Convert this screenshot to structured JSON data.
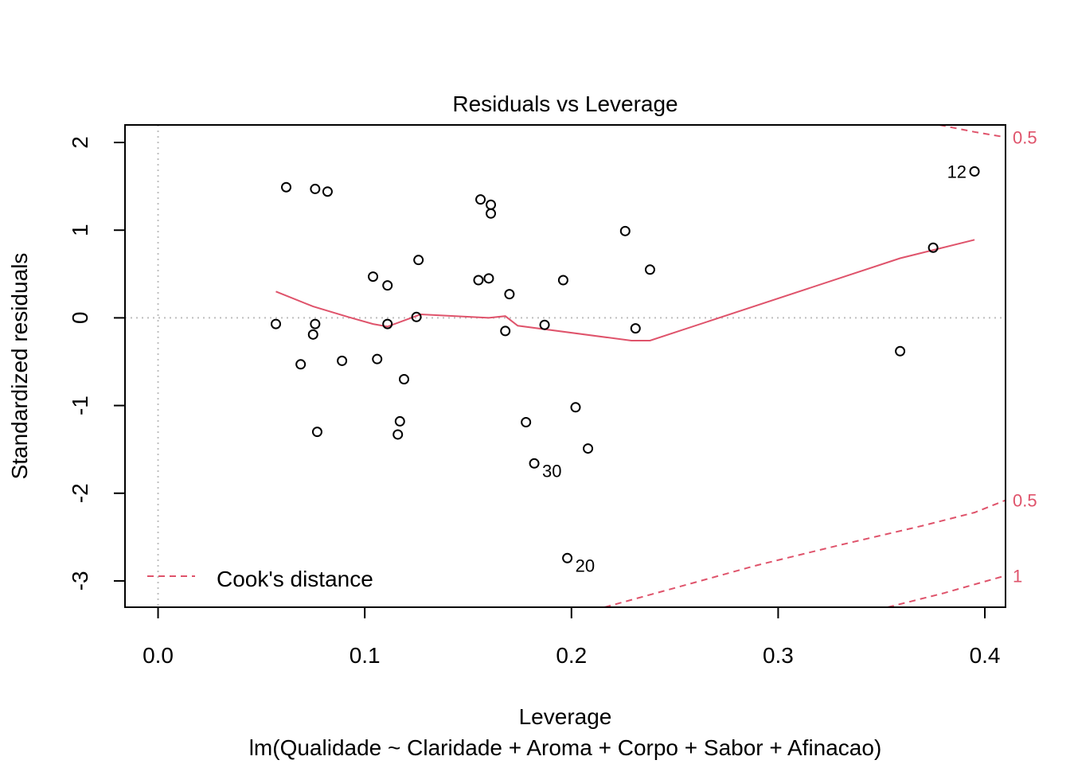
{
  "chart_data": {
    "type": "scatter",
    "title": "Residuals vs Leverage",
    "xlabel": "Leverage",
    "subtitle": "lm(Qualidade ~ Claridade + Aroma + Corpo + Sabor + Afinacao)",
    "ylabel": "Standardized residuals",
    "xlim": [
      -0.016,
      0.41
    ],
    "ylim": [
      -3.3,
      2.2
    ],
    "x_ticks": [
      0.0,
      0.1,
      0.2,
      0.3,
      0.4
    ],
    "x_tick_labels": [
      "0.0",
      "0.1",
      "0.2",
      "0.3",
      "0.4"
    ],
    "y_ticks": [
      2,
      1,
      0,
      -1,
      -2,
      -3
    ],
    "y_tick_labels": [
      "2",
      "1",
      "0",
      "-1",
      "-2",
      "-3"
    ],
    "points": [
      {
        "x": 0.062,
        "y": 1.49
      },
      {
        "x": 0.076,
        "y": 1.47
      },
      {
        "x": 0.082,
        "y": 1.44
      },
      {
        "x": 0.156,
        "y": 1.35
      },
      {
        "x": 0.161,
        "y": 1.29
      },
      {
        "x": 0.161,
        "y": 1.19
      },
      {
        "x": 0.395,
        "y": 1.67,
        "label": "12"
      },
      {
        "x": 0.226,
        "y": 0.99
      },
      {
        "x": 0.375,
        "y": 0.8
      },
      {
        "x": 0.126,
        "y": 0.66
      },
      {
        "x": 0.238,
        "y": 0.55
      },
      {
        "x": 0.104,
        "y": 0.47
      },
      {
        "x": 0.111,
        "y": 0.37
      },
      {
        "x": 0.155,
        "y": 0.43
      },
      {
        "x": 0.16,
        "y": 0.45
      },
      {
        "x": 0.196,
        "y": 0.43
      },
      {
        "x": 0.17,
        "y": 0.27
      },
      {
        "x": 0.125,
        "y": 0.01
      },
      {
        "x": 0.057,
        "y": -0.07
      },
      {
        "x": 0.076,
        "y": -0.07
      },
      {
        "x": 0.075,
        "y": -0.19
      },
      {
        "x": 0.111,
        "y": -0.07
      },
      {
        "x": 0.187,
        "y": -0.08
      },
      {
        "x": 0.168,
        "y": -0.15
      },
      {
        "x": 0.231,
        "y": -0.12
      },
      {
        "x": 0.359,
        "y": -0.38
      },
      {
        "x": 0.069,
        "y": -0.53
      },
      {
        "x": 0.089,
        "y": -0.49
      },
      {
        "x": 0.106,
        "y": -0.47
      },
      {
        "x": 0.119,
        "y": -0.7
      },
      {
        "x": 0.117,
        "y": -1.18
      },
      {
        "x": 0.116,
        "y": -1.33
      },
      {
        "x": 0.077,
        "y": -1.3
      },
      {
        "x": 0.178,
        "y": -1.19
      },
      {
        "x": 0.202,
        "y": -1.02
      },
      {
        "x": 0.208,
        "y": -1.49
      },
      {
        "x": 0.182,
        "y": -1.66,
        "label": "30"
      },
      {
        "x": 0.198,
        "y": -2.74,
        "label": "20"
      }
    ],
    "smooth_line": {
      "x": [
        0.057,
        0.075,
        0.092,
        0.104,
        0.111,
        0.127,
        0.16,
        0.168,
        0.174,
        0.229,
        0.238,
        0.359,
        0.395
      ],
      "y": [
        0.3,
        0.13,
        0.01,
        -0.07,
        -0.1,
        0.04,
        0.0,
        0.02,
        -0.09,
        -0.26,
        -0.26,
        0.68,
        0.89
      ]
    },
    "cooks_curves": [
      {
        "label": "0.5",
        "x": [
          0.378,
          0.395,
          0.41
        ],
        "y": [
          2.2,
          2.12,
          2.06
        ]
      },
      {
        "label": "0.5",
        "x": [
          0.216,
          0.25,
          0.29,
          0.33,
          0.37,
          0.395,
          0.41
        ],
        "y": [
          -3.3,
          -3.08,
          -2.82,
          -2.59,
          -2.37,
          -2.22,
          -2.08
        ]
      },
      {
        "label": "1",
        "x": [
          0.353,
          0.38,
          0.41
        ],
        "y": [
          -3.3,
          -3.14,
          -2.94
        ]
      }
    ],
    "cooks_labels": [
      {
        "text": "0.5",
        "y": 2.06
      },
      {
        "text": "0.5",
        "y": -2.08
      },
      {
        "text": "1",
        "y": -2.94
      }
    ],
    "legend": {
      "label": "Cook's distance",
      "position": "bottom-left"
    },
    "reference_lines": {
      "h": 0,
      "v": 0
    },
    "colors": {
      "points": "#000000",
      "smooth": "#DF536B",
      "cooks": "#DF536B",
      "reference": "#BEBEBE"
    }
  }
}
